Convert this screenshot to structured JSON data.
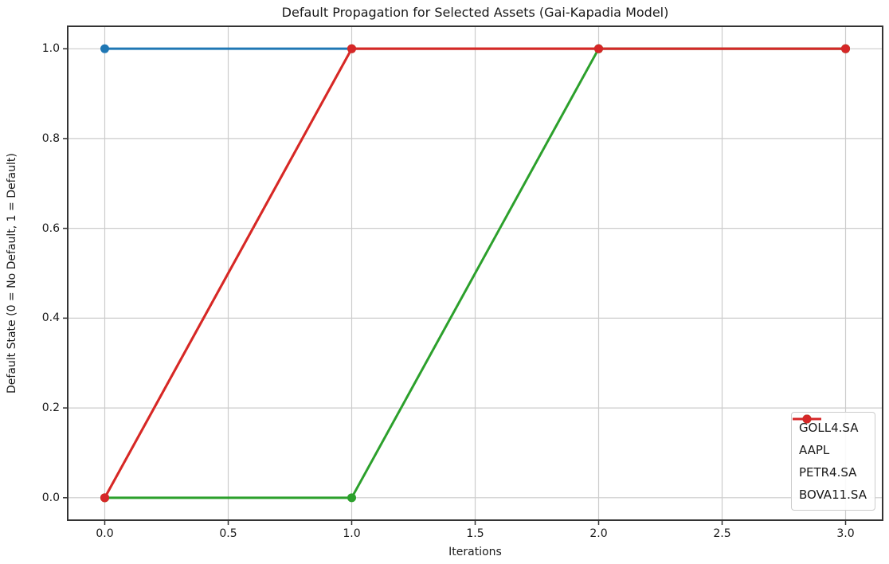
{
  "chart_data": {
    "type": "line",
    "title": "Default Propagation for Selected Assets (Gai-Kapadia Model)",
    "xlabel": "Iterations",
    "ylabel": "Default State (0 = No Default, 1 = Default)",
    "x": [
      0,
      1,
      2,
      3
    ],
    "series": [
      {
        "name": "GOLL4.SA",
        "color": "#1f77b4",
        "values": [
          1,
          1,
          1,
          1
        ]
      },
      {
        "name": "AAPL",
        "color": "#ff7f0e",
        "values": [
          0,
          1,
          1,
          1
        ],
        "note": "fully hidden beneath BOVA11.SA line"
      },
      {
        "name": "PETR4.SA",
        "color": "#2ca02c",
        "values": [
          0,
          0,
          1,
          1
        ]
      },
      {
        "name": "BOVA11.SA",
        "color": "#d62728",
        "values": [
          0,
          1,
          1,
          1
        ]
      }
    ],
    "xlim": [
      -0.15,
      3.15
    ],
    "ylim": [
      -0.05,
      1.05
    ],
    "x_ticks": [
      0.0,
      0.5,
      1.0,
      1.5,
      2.0,
      2.5,
      3.0
    ],
    "y_ticks": [
      0.0,
      0.2,
      0.4,
      0.6,
      0.8,
      1.0
    ],
    "tick_format_decimals": 1,
    "grid": true,
    "legend_position": "lower right",
    "marker": "o",
    "styles": {
      "grid_color": "#cccccc",
      "spine_color": "#333333",
      "tick_color": "#333333",
      "text_color": "#1a1a1a",
      "background": "#ffffff",
      "line_width": 3,
      "marker_radius": 5.5
    }
  }
}
